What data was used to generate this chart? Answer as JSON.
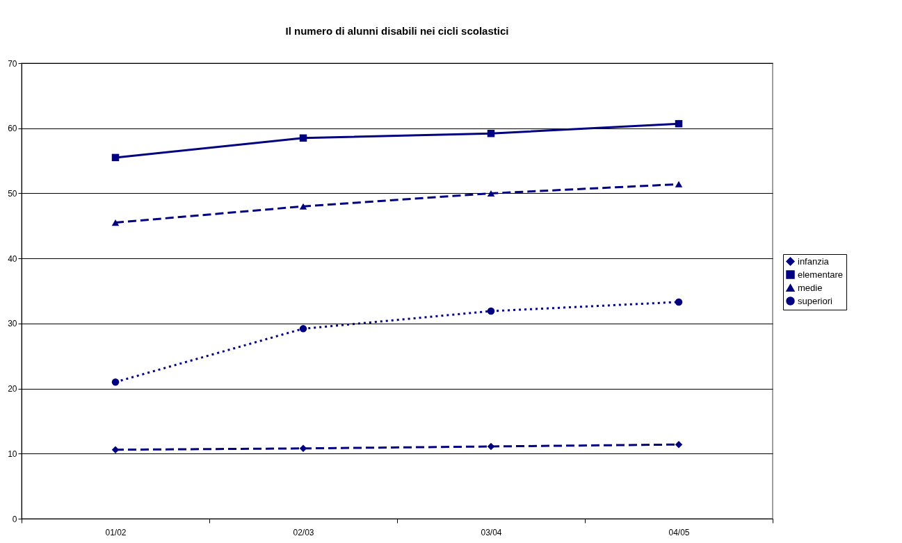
{
  "chart_data": {
    "type": "line",
    "title": "Il numero di alunni disabili nei cicli scolastici",
    "categories": [
      "01/02",
      "02/03",
      "03/04",
      "04/05"
    ],
    "series": [
      {
        "name": "infanzia",
        "color": "#000080",
        "values": [
          10.6,
          10.8,
          11.1,
          11.4
        ],
        "marker": "diamond",
        "line_style": "dashed"
      },
      {
        "name": "elementare",
        "color": "#000080",
        "values": [
          55.5,
          58.5,
          59.2,
          60.7
        ],
        "marker": "square",
        "line_style": "solid"
      },
      {
        "name": "medie",
        "color": "#000080",
        "values": [
          45.5,
          48.0,
          50.0,
          51.4
        ],
        "marker": "triangle",
        "line_style": "dashed"
      },
      {
        "name": "superiori",
        "color": "#000080",
        "values": [
          21.0,
          29.2,
          31.9,
          33.3
        ],
        "marker": "circle",
        "line_style": "dotted"
      }
    ],
    "ylim": [
      0,
      70
    ],
    "yticks": [
      0,
      10,
      20,
      30,
      40,
      50,
      60,
      70
    ],
    "grid": "y",
    "legend": "right"
  }
}
